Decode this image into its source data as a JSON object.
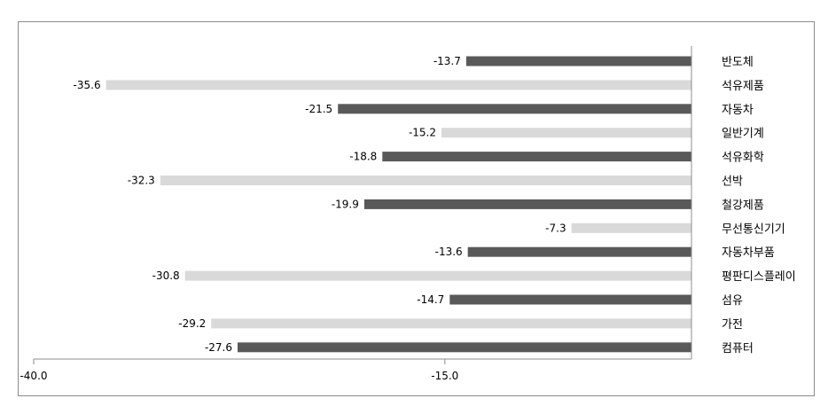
{
  "chart_data": {
    "type": "bar",
    "orientation": "horizontal",
    "title": "",
    "xlabel": "",
    "ylabel": "",
    "xlim": [
      -40,
      0
    ],
    "x_ticks": [
      "-40.0",
      "-15.0"
    ],
    "grid": false,
    "legend": "none",
    "colors": {
      "dark": "#595959",
      "light": "#d9d9d9"
    },
    "categories": [
      "반도체",
      "석유제품",
      "자동차",
      "일반기계",
      "석유화학",
      "선박",
      "철강제품",
      "무선통신기기",
      "자동차부품",
      "평판디스플레이",
      "섬유",
      "가전",
      "컴퓨터"
    ],
    "values": [
      -13.7,
      -35.6,
      -21.5,
      -15.2,
      -18.8,
      -32.3,
      -19.9,
      -7.3,
      -13.6,
      -30.8,
      -14.7,
      -29.2,
      -27.6
    ],
    "value_labels": [
      "-13.7",
      "-35.6",
      "-21.5",
      "-15.2",
      "-18.8",
      "-32.3",
      "-19.9",
      "-7.3",
      "-13.6",
      "-30.8",
      "-14.7",
      "-29.2",
      "-27.6"
    ],
    "bar_shades": [
      "dark",
      "light",
      "dark",
      "light",
      "dark",
      "light",
      "dark",
      "light",
      "dark",
      "light",
      "dark",
      "light",
      "dark"
    ]
  }
}
